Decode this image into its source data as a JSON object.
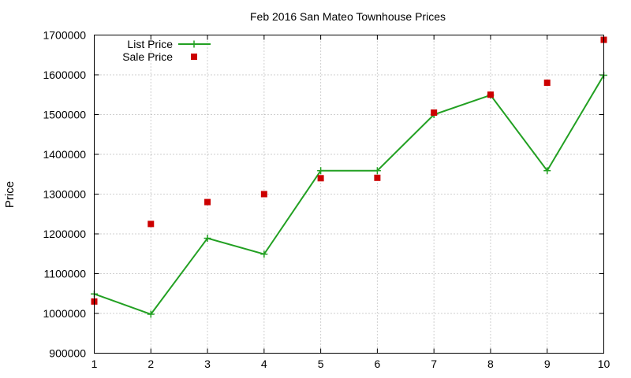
{
  "chart_data": {
    "type": "line",
    "title": "Feb 2016 San Mateo Townhouse Prices",
    "xlabel": "",
    "ylabel": "Price",
    "x": [
      1,
      2,
      3,
      4,
      5,
      6,
      7,
      8,
      9,
      10
    ],
    "xlim": [
      1,
      10
    ],
    "ylim": [
      900000,
      1700000
    ],
    "xticks": [
      "1",
      "2",
      "3",
      "4",
      "5",
      "6",
      "7",
      "8",
      "9",
      "10"
    ],
    "yticks": [
      "900000",
      "1000000",
      "1100000",
      "1200000",
      "1300000",
      "1400000",
      "1500000",
      "1600000",
      "1700000"
    ],
    "grid": true,
    "legend_position": "top-left",
    "series": [
      {
        "name": "List Price",
        "style": "linespoints",
        "marker": "plus",
        "color": "#22a022",
        "values": [
          1049000,
          998000,
          1189000,
          1149000,
          1359000,
          1359000,
          1500000,
          1549000,
          1359000,
          1599000
        ]
      },
      {
        "name": "Sale Price",
        "style": "points",
        "marker": "square",
        "color": "#cc0000",
        "values": [
          1030000,
          1225000,
          1280000,
          1300000,
          1340000,
          1341000,
          1505000,
          1550000,
          1580000,
          1688000
        ]
      }
    ]
  }
}
